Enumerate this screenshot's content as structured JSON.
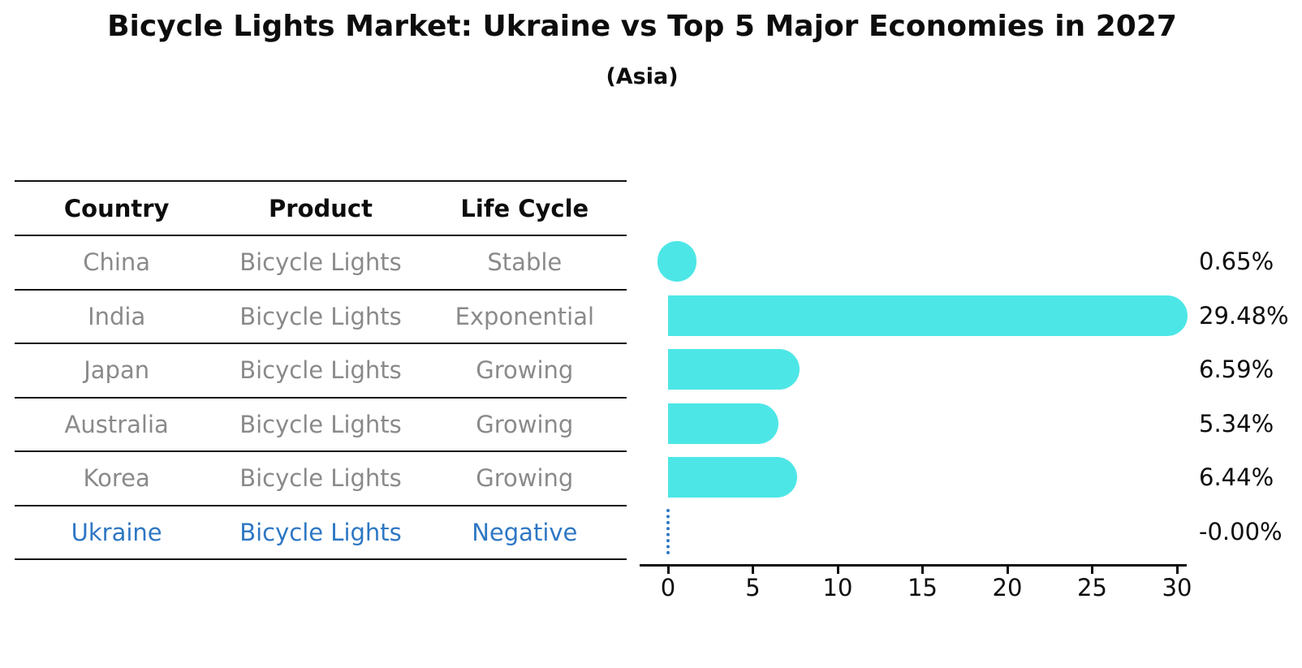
{
  "title": "Bicycle Lights Market: Ukraine vs Top 5 Major Economies in 2027",
  "subtitle": "(Asia)",
  "table": {
    "headers": [
      "Country",
      "Product",
      "Life Cycle"
    ],
    "rows": [
      {
        "country": "China",
        "product": "Bicycle Lights",
        "life_cycle": "Stable",
        "highlight": false
      },
      {
        "country": "India",
        "product": "Bicycle Lights",
        "life_cycle": "Exponential",
        "highlight": false
      },
      {
        "country": "Japan",
        "product": "Bicycle Lights",
        "life_cycle": "Growing",
        "highlight": false
      },
      {
        "country": "Australia",
        "product": "Bicycle Lights",
        "life_cycle": "Growing",
        "highlight": false
      },
      {
        "country": "Korea",
        "product": "Bicycle Lights",
        "life_cycle": "Growing",
        "highlight": false
      },
      {
        "country": "Ukraine",
        "product": "Bicycle Lights",
        "life_cycle": "Negative",
        "highlight": true
      }
    ]
  },
  "chart_data": {
    "type": "bar",
    "orientation": "horizontal",
    "title": "Bicycle Lights Market: Ukraine vs Top 5 Major Economies in 2027",
    "subtitle": "(Asia)",
    "categories": [
      "China",
      "India",
      "Japan",
      "Australia",
      "Korea",
      "Ukraine"
    ],
    "values": [
      0.65,
      29.48,
      6.59,
      5.34,
      6.44,
      -0.0
    ],
    "value_labels": [
      "0.65%",
      "29.48%",
      "6.59%",
      "5.34%",
      "6.44%",
      "-0.00%"
    ],
    "xticks": [
      0,
      5,
      10,
      15,
      20,
      25,
      30
    ],
    "xlim": [
      -1.7,
      31.5
    ],
    "xlabel": "",
    "ylabel": "",
    "grid": false,
    "legend": false,
    "bar_color": "#4de6e6",
    "highlight_color": "#2e77c4",
    "gray_text_color": "#8a8a8a",
    "axis_color": "#111111"
  }
}
